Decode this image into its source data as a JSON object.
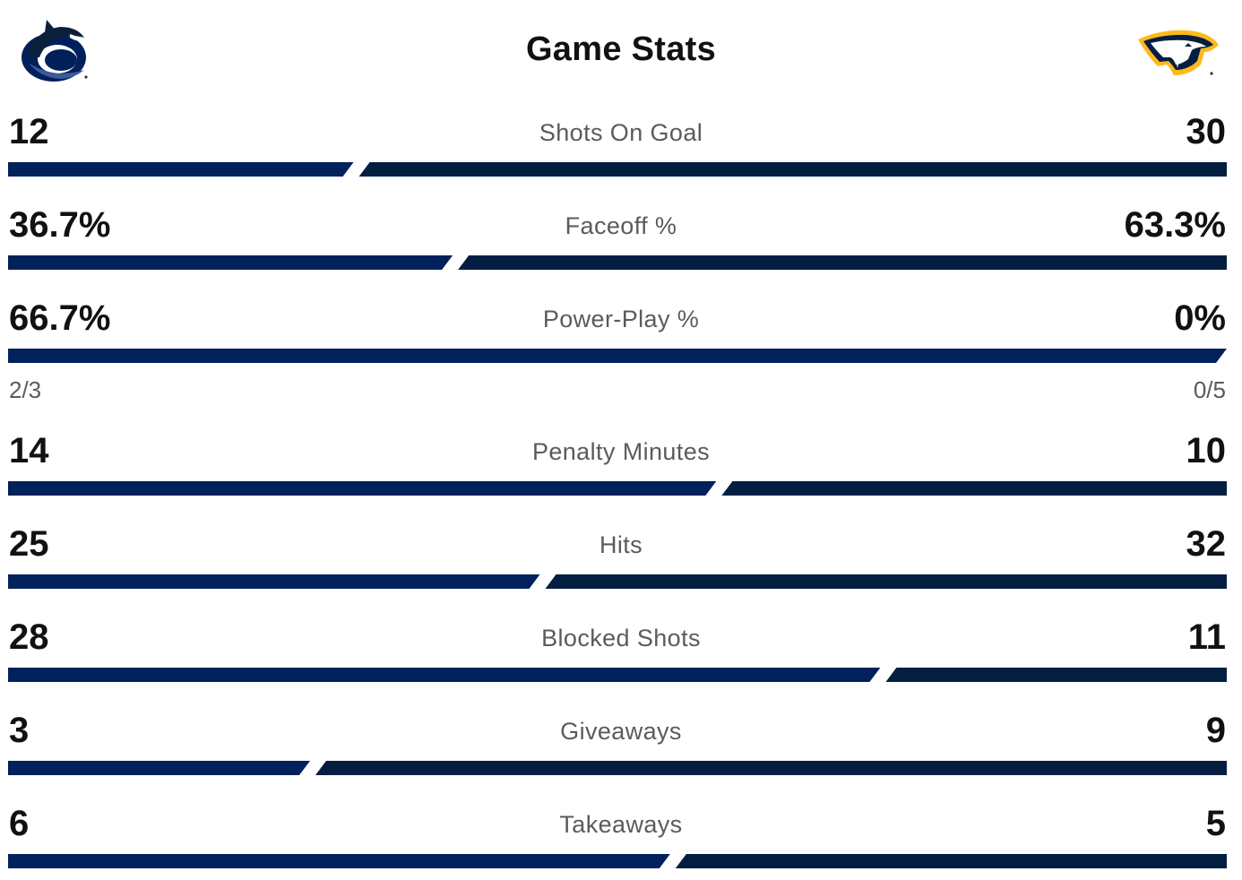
{
  "header": {
    "title": "Game Stats",
    "home_logo_icon": "canucks-orca-logo-icon",
    "away_logo_icon": "predators-sabertooth-logo-icon"
  },
  "colors": {
    "home_bar": "#00215B",
    "away_bar": "#041E42",
    "label": "#5b5b5b",
    "value": "#111111"
  },
  "stats": [
    {
      "label": "Shots On Goal",
      "home": "12",
      "away": "30",
      "home_value": 12,
      "away_value": 30
    },
    {
      "label": "Faceoff %",
      "home": "36.7%",
      "away": "63.3%",
      "home_value": 36.7,
      "away_value": 63.3
    },
    {
      "label": "Power-Play %",
      "home": "66.7%",
      "away": "0%",
      "home_value": 66.7,
      "away_value": 0,
      "home_sub": "2/3",
      "away_sub": "0/5"
    },
    {
      "label": "Penalty Minutes",
      "home": "14",
      "away": "10",
      "home_value": 14,
      "away_value": 10
    },
    {
      "label": "Hits",
      "home": "25",
      "away": "32",
      "home_value": 25,
      "away_value": 32
    },
    {
      "label": "Blocked Shots",
      "home": "28",
      "away": "11",
      "home_value": 28,
      "away_value": 11
    },
    {
      "label": "Giveaways",
      "home": "3",
      "away": "9",
      "home_value": 3,
      "away_value": 9
    },
    {
      "label": "Takeaways",
      "home": "6",
      "away": "5",
      "home_value": 6,
      "away_value": 5
    }
  ]
}
